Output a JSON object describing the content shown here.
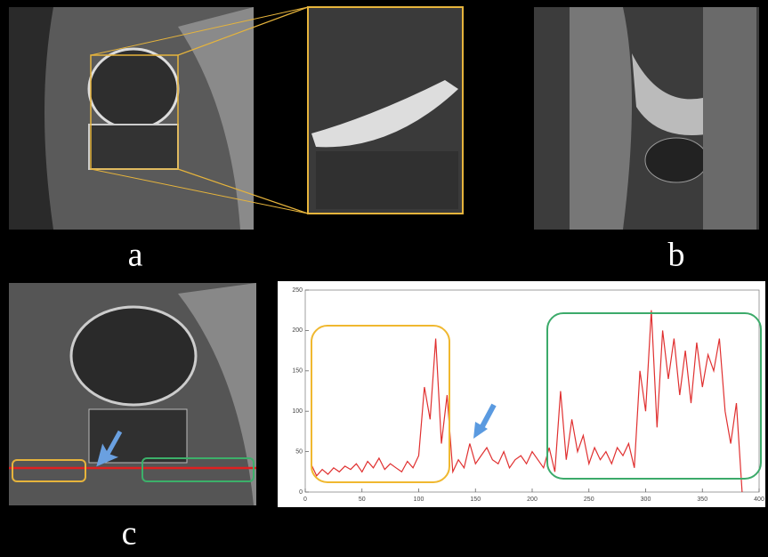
{
  "panel_labels": [
    "a",
    "b",
    "c"
  ],
  "chart_data": {
    "type": "line",
    "x": [
      5,
      10,
      15,
      20,
      25,
      30,
      35,
      40,
      45,
      50,
      55,
      60,
      65,
      70,
      75,
      80,
      85,
      90,
      95,
      100,
      105,
      110,
      115,
      120,
      125,
      130,
      135,
      140,
      145,
      150,
      155,
      160,
      165,
      170,
      175,
      180,
      185,
      190,
      195,
      200,
      205,
      210,
      215,
      220,
      225,
      230,
      235,
      240,
      245,
      250,
      255,
      260,
      265,
      270,
      275,
      280,
      285,
      290,
      295,
      300,
      305,
      310,
      315,
      320,
      325,
      330,
      335,
      340,
      345,
      350,
      355,
      360,
      365,
      370,
      375,
      380,
      385
    ],
    "values": [
      35,
      20,
      28,
      22,
      30,
      25,
      32,
      28,
      35,
      25,
      38,
      30,
      42,
      28,
      35,
      30,
      25,
      38,
      30,
      45,
      130,
      90,
      190,
      60,
      120,
      25,
      40,
      30,
      60,
      35,
      45,
      55,
      40,
      35,
      50,
      30,
      40,
      45,
      35,
      50,
      40,
      30,
      55,
      25,
      125,
      40,
      90,
      50,
      70,
      35,
      55,
      40,
      50,
      35,
      55,
      45,
      60,
      30,
      150,
      100,
      225,
      80,
      200,
      140,
      190,
      120,
      175,
      110,
      185,
      130,
      170,
      150,
      190,
      100,
      60,
      110,
      0
    ],
    "color": "#e03030",
    "xlim": [
      0,
      400
    ],
    "xticks": [
      0,
      50,
      100,
      150,
      200,
      250,
      300,
      350,
      400
    ],
    "ylim": [
      0,
      250
    ],
    "yticks": [
      0,
      50,
      100,
      150,
      200,
      250
    ]
  }
}
